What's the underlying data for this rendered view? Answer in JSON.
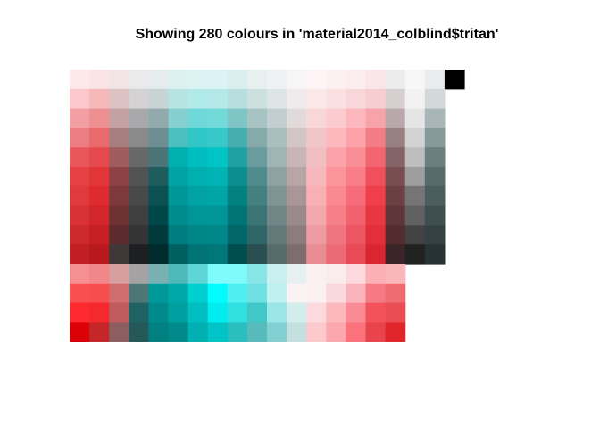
{
  "title": "Showing 280 colours in 'material2014_colblind$tritan'",
  "chart_data": {
    "type": "heatmap",
    "title": "Showing 280 colours in 'material2014_colblind$tritan'",
    "rows": 14,
    "columns": 20,
    "count": 280,
    "grid": false,
    "colours": [
      "#fde8ea",
      "#fbe4e5",
      "#f2e5e6",
      "#eaeaeb",
      "#e4eced",
      "#def1f1",
      "#dcf3f4",
      "#dbf3f4",
      "#dceff0",
      "#e8efef",
      "#eff2f2",
      "#f7f5f6",
      "#fdf5f6",
      "#fcf1f2",
      "#fcedee",
      "#fae6e8",
      "#ececec",
      "#f7f7f7",
      "#eaedee",
      "#000000",
      "#fcc8cb",
      "#f6b9ba",
      "#dcc2c3",
      "#d5d2d3",
      "#c8d3d4",
      "#b8e3e3",
      "#b2eaea",
      "#b5e9e9",
      "#b8dede",
      "#cde0e0",
      "#dde5e5",
      "#efeaeb",
      "#fbe9ea",
      "#fbe0e2",
      "#f9d6d9",
      "#f6cdd0",
      "#d6cfd0",
      "#f2f2f2",
      "#d3d8d9",
      "#ffffff",
      "#f29ea2",
      "#ee8f92",
      "#c4a1a3",
      "#a7a9aa",
      "#92aaab",
      "#84d0d0",
      "#6fd8d9",
      "#73dada",
      "#7fc5c6",
      "#a8c3c4",
      "#c2cfd0",
      "#e1dadb",
      "#f8d7d9",
      "#fbcbcf",
      "#fcb8bd",
      "#f6a4aa",
      "#b8a8aa",
      "#e5e5e5",
      "#a9b6b7",
      "#ffffff",
      "#ec7e83",
      "#e86a6d",
      "#a67e80",
      "#8a8a8b",
      "#6e8f91",
      "#4cc0c1",
      "#31c7c8",
      "#37c8c9",
      "#46aeaf",
      "#86a9aa",
      "#a9bfbf",
      "#d1c5c6",
      "#f1c6c9",
      "#fcb8bd",
      "#fca3aa",
      "#f37d86",
      "#987f82",
      "#d2d2d2",
      "#879a9b",
      "#ffffff",
      "#e9575c",
      "#e44a4d",
      "#9e5c5e",
      "#676869",
      "#4a7475",
      "#00b0b1",
      "#00bec0",
      "#00c4c5",
      "#1fa1a2",
      "#6a9c9d",
      "#9fb4b4",
      "#c7b5b7",
      "#f1bfc2",
      "#fca3aa",
      "#fa8e96",
      "#f16470",
      "#856467",
      "#bdbdbd",
      "#6b7f80",
      "#ffffff",
      "#e63f44",
      "#e23538",
      "#8d4245",
      "#525355",
      "#1e5c5e",
      "#00a3a4",
      "#00afb0",
      "#00b4b6",
      "#0c8d8e",
      "#4e8c8d",
      "#8ea2a3",
      "#b8a6a7",
      "#f6b8bc",
      "#fc949c",
      "#f97e89",
      "#f14f5c",
      "#774d50",
      "#9e9e9e",
      "#586b6c",
      "#ffffff",
      "#e13a3e",
      "#dd2b2f",
      "#7d3a3c",
      "#48494a",
      "#0b5152",
      "#009798",
      "#00a2a3",
      "#00a5a6",
      "#00807f",
      "#458081",
      "#7f9595",
      "#a99798",
      "#f8b0b5",
      "#fa8992",
      "#f66c78",
      "#ee3f4b",
      "#6b4043",
      "#757575",
      "#4c5d5e",
      "#ffffff",
      "#d93236",
      "#d3262a",
      "#6e3234",
      "#3e3f40",
      "#004749",
      "#008b8c",
      "#009596",
      "#009697",
      "#007374",
      "#3b7475",
      "#718687",
      "#9b8a8b",
      "#f3a8ad",
      "#f5808a",
      "#f2626e",
      "#e93741",
      "#5e3538",
      "#616161",
      "#3f4f50",
      "#ffffff",
      "#cd2a2e",
      "#c61f24",
      "#5d2b2d",
      "#333435",
      "#003a3b",
      "#007d7e",
      "#008687",
      "#008789",
      "#006667",
      "#2f6667",
      "#637a7b",
      "#8c7c7d",
      "#ee9ba1",
      "#ef7681",
      "#ec5663",
      "#e22f39",
      "#522c2f",
      "#424242",
      "#344243",
      "#ffffff",
      "#c21f24",
      "#b8191d",
      "#3f3839",
      "#1e1f20",
      "#002c2d",
      "#005f60",
      "#007374",
      "#007778",
      "#004d4e",
      "#2a4f50",
      "#556b6c",
      "#7d6d6e",
      "#e98d94",
      "#ec6a75",
      "#e84a57",
      "#d92630",
      "#3b2528",
      "#212121",
      "#263233",
      "#ffffff",
      "#f58f92",
      "#f28789",
      "#d89fa0",
      "#a4a2a3",
      "#79b1b2",
      "#4fb8b9",
      "#5ed6d7",
      "#80fbfc",
      "#7ffafb",
      "#88e5e6",
      "#c9efef",
      "#e6f0f0",
      "#fbf1f2",
      "#f9eced",
      "#fcd9dc",
      "#fcb0b5",
      "#fab7ba",
      "#ffffff",
      "#ffffff",
      "#ffffff",
      "#f84f53",
      "#f64d4f",
      "#d06d6f",
      "#4f7677",
      "#00999a",
      "#00a8a9",
      "#00cfd0",
      "#00fcfd",
      "#4feff0",
      "#6fe1e2",
      "#bff1f1",
      "#f9f3f4",
      "#fbf1f2",
      "#fbd8dc",
      "#f9b5bb",
      "#f57a82",
      "#ee6b72",
      "#ffffff",
      "#ffffff",
      "#ffffff",
      "#fd2a2f",
      "#f4282d",
      "#c05c5e",
      "#1f6263",
      "#008a8b",
      "#00a0a1",
      "#00bfc0",
      "#00ecee",
      "#32dfe0",
      "#40c8c9",
      "#9ae5e6",
      "#d3ecec",
      "#fbd9dc",
      "#fcb7bd",
      "#f98b94",
      "#f3525b",
      "#eb4d55",
      "#ffffff",
      "#ffffff",
      "#ffffff",
      "#dc0007",
      "#c52729",
      "#8d5e60",
      "#255959",
      "#008081",
      "#008a8b",
      "#00b0b2",
      "#00c4c5",
      "#2abebf",
      "#57babb",
      "#82d0d1",
      "#c4dfe0",
      "#fcc9cd",
      "#fca7ae",
      "#fb727d",
      "#e9434c",
      "#e0262a",
      "#ffffff",
      "#ffffff",
      "#ffffff"
    ],
    "filled_cells": 280
  }
}
